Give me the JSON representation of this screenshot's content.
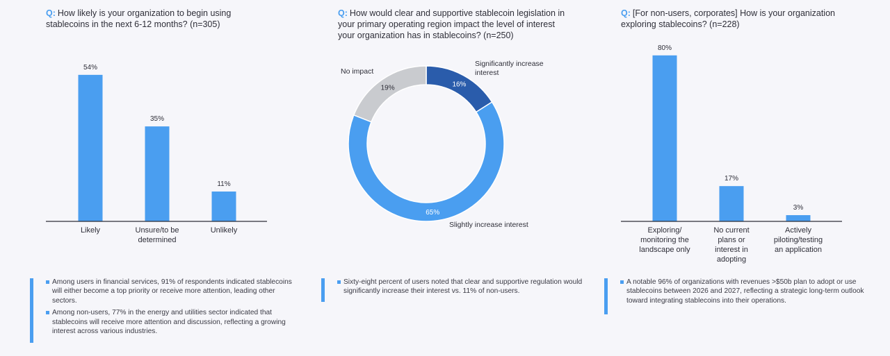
{
  "panels": [
    {
      "question_prefix": "Q:",
      "question": "How likely is your organization to begin using stablecoins in the next 6-12 months? (n=305)"
    },
    {
      "question_prefix": "Q:",
      "question": "How would clear and supportive stablecoin legislation in your primary operating region impact the level of interest your organization has in stablecoins? (n=250)"
    },
    {
      "question_prefix": "Q:",
      "question": "[For non-users, corporates] How is your organization exploring stablecoins? (n=228)"
    }
  ],
  "notes": [
    [
      "Among users in financial services, 91% of respondents indicated stablecoins will either become a top priority or receive more attention, leading other sectors.",
      "Among non-users, 77% in the energy and utilities sector indicated that stablecoins will receive more attention and discussion, reflecting a growing interest across various industries."
    ],
    [
      "Sixty-eight percent of users noted that clear and supportive regulation would significantly increase their interest vs. 11% of non-users."
    ],
    [
      "A notable 96% of organizations with revenues >$50b plan to adopt or use stablecoins between 2026 and 2027, reflecting a strategic long-term outlook toward integrating stablecoins into their operations."
    ]
  ],
  "colors": {
    "bar": "#4a9ef0",
    "dark_blue": "#2a5cab",
    "gray": "#c9cbcf",
    "axis": "#2e2e38"
  },
  "chart_data": [
    {
      "type": "bar",
      "categories": [
        [
          "Likely"
        ],
        [
          "Unsure/to be",
          "determined"
        ],
        [
          "Unlikely"
        ]
      ],
      "values": [
        54,
        35,
        11
      ],
      "value_labels": [
        "54%",
        "35%",
        "11%"
      ],
      "ylim": [
        0,
        100
      ]
    },
    {
      "type": "pie",
      "donut": true,
      "slices": [
        {
          "label": [
            "Significantly increase",
            "interest"
          ],
          "value": 16,
          "value_label": "16%",
          "color": "#2a5cab"
        },
        {
          "label": [
            "Slightly increase interest"
          ],
          "value": 65,
          "value_label": "65%",
          "color": "#4a9ef0"
        },
        {
          "label": [
            "No impact"
          ],
          "value": 19,
          "value_label": "19%",
          "color": "#c9cbcf"
        }
      ]
    },
    {
      "type": "bar",
      "categories": [
        [
          "Exploring/",
          "monitoring the",
          "landscape only"
        ],
        [
          "No current",
          "plans or",
          "interest in",
          "adopting"
        ],
        [
          "Actively",
          "piloting/testing",
          "an application"
        ]
      ],
      "values": [
        80,
        17,
        3
      ],
      "value_labels": [
        "80%",
        "17%",
        "3%"
      ],
      "ylim": [
        0,
        100
      ]
    }
  ]
}
